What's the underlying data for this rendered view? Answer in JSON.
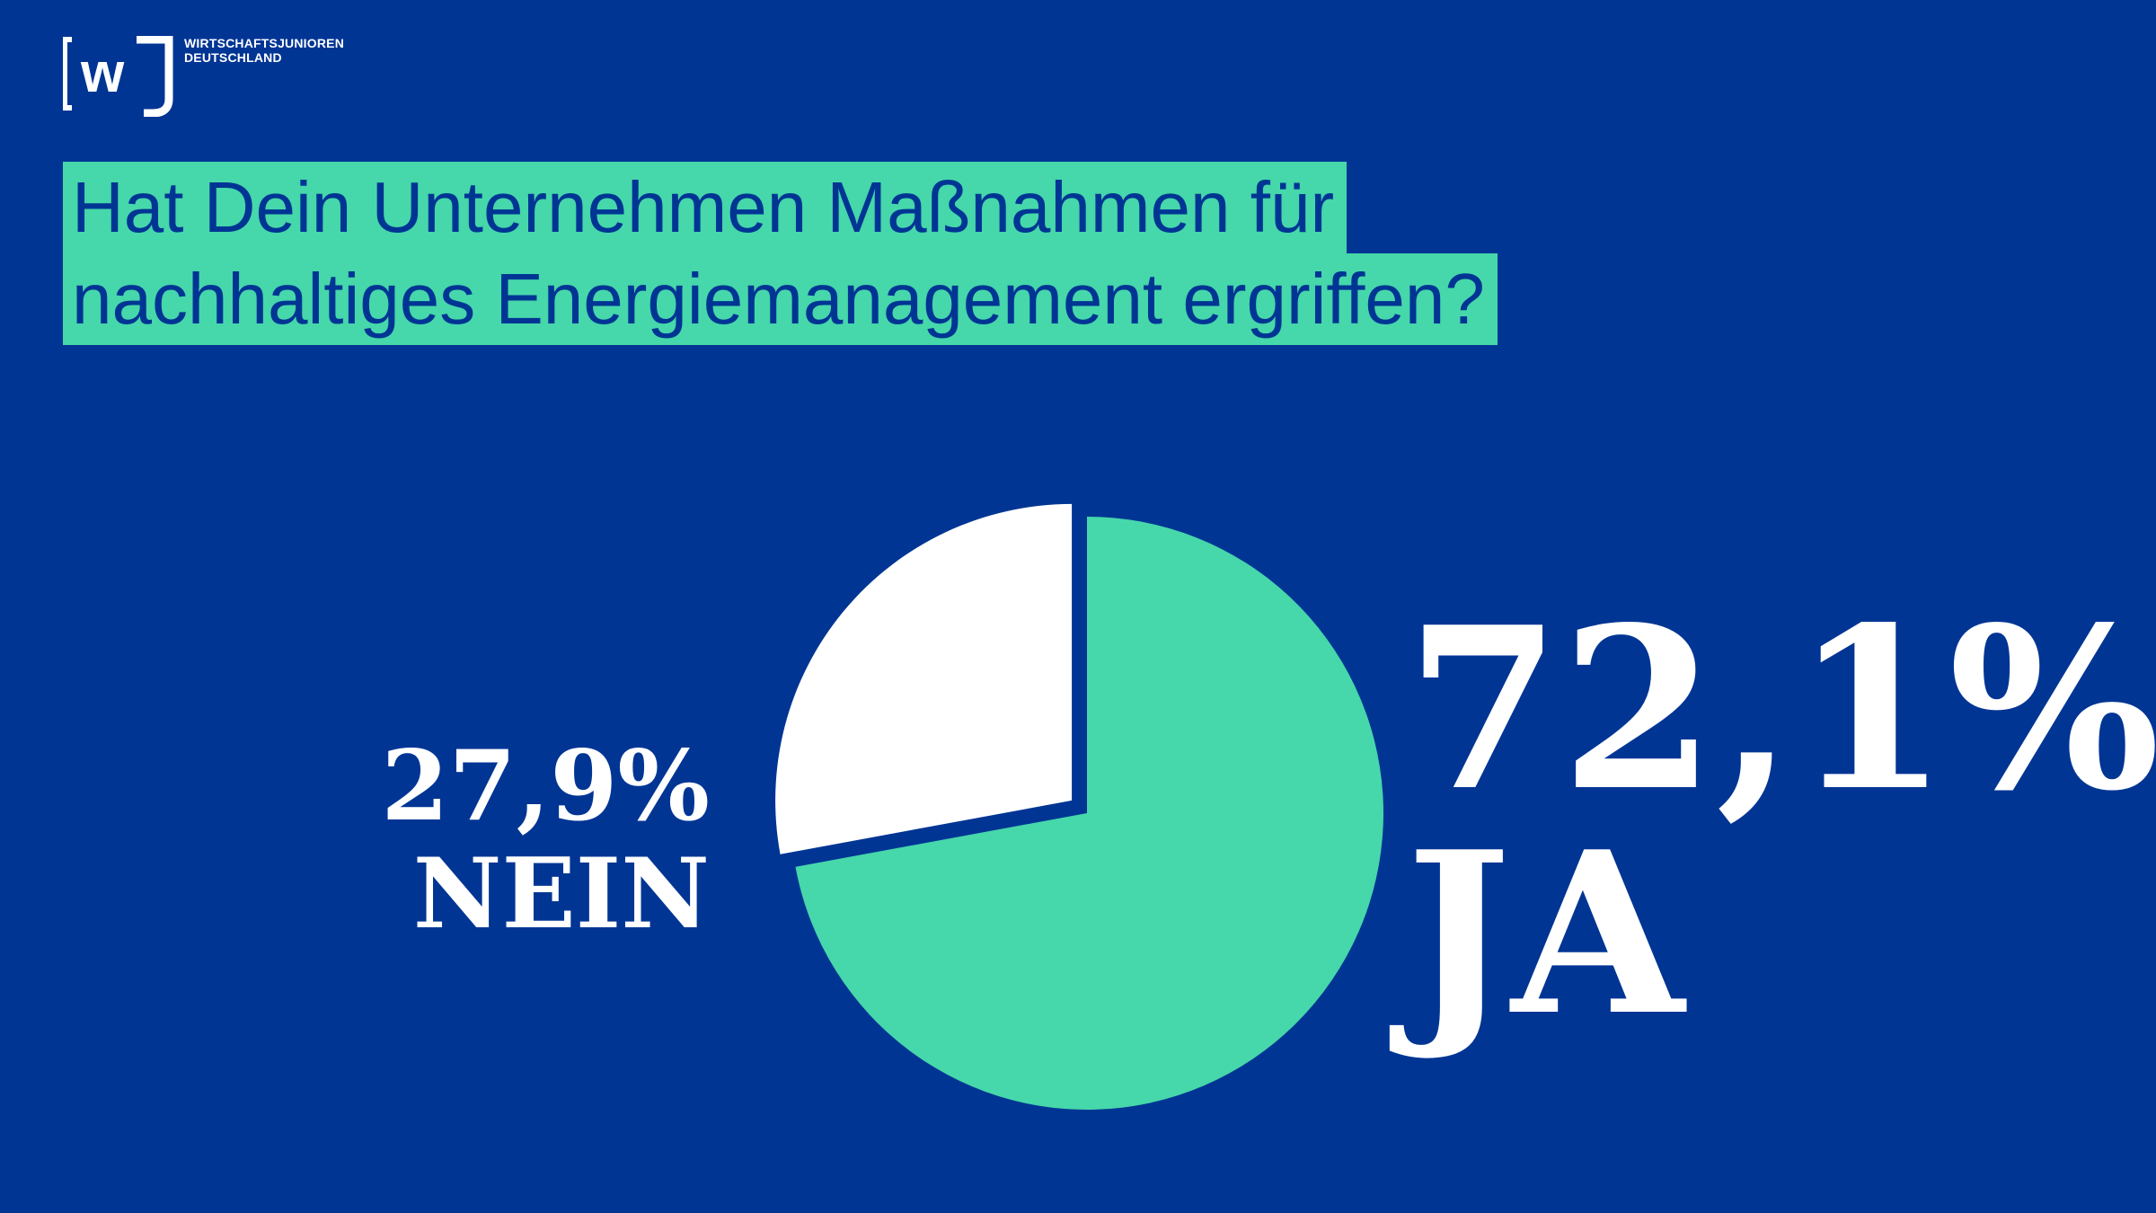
{
  "brand": {
    "logo_mark": "[wJ]",
    "name_line1": "WIRTSCHAFTSJUNIOREN",
    "name_line2": "DEUTSCHLAND"
  },
  "question": {
    "line1": "Hat Dein Unternehmen Maßnahmen für",
    "line2": "nachhaltiges Energiemanagement ergriffen?"
  },
  "colors": {
    "background": "#003594",
    "accent": "#46d7aa",
    "white": "#ffffff"
  },
  "chart_data": {
    "type": "pie",
    "title": "Hat Dein Unternehmen Maßnahmen für nachhaltiges Energiemanagement ergriffen?",
    "categories": [
      "NEIN",
      "JA"
    ],
    "values": [
      27.9,
      72.1
    ],
    "value_labels": [
      "27,9%",
      "72,1%"
    ],
    "colors": [
      "#ffffff",
      "#46d7aa"
    ],
    "exploded": [
      "NEIN"
    ],
    "legend": "none"
  }
}
